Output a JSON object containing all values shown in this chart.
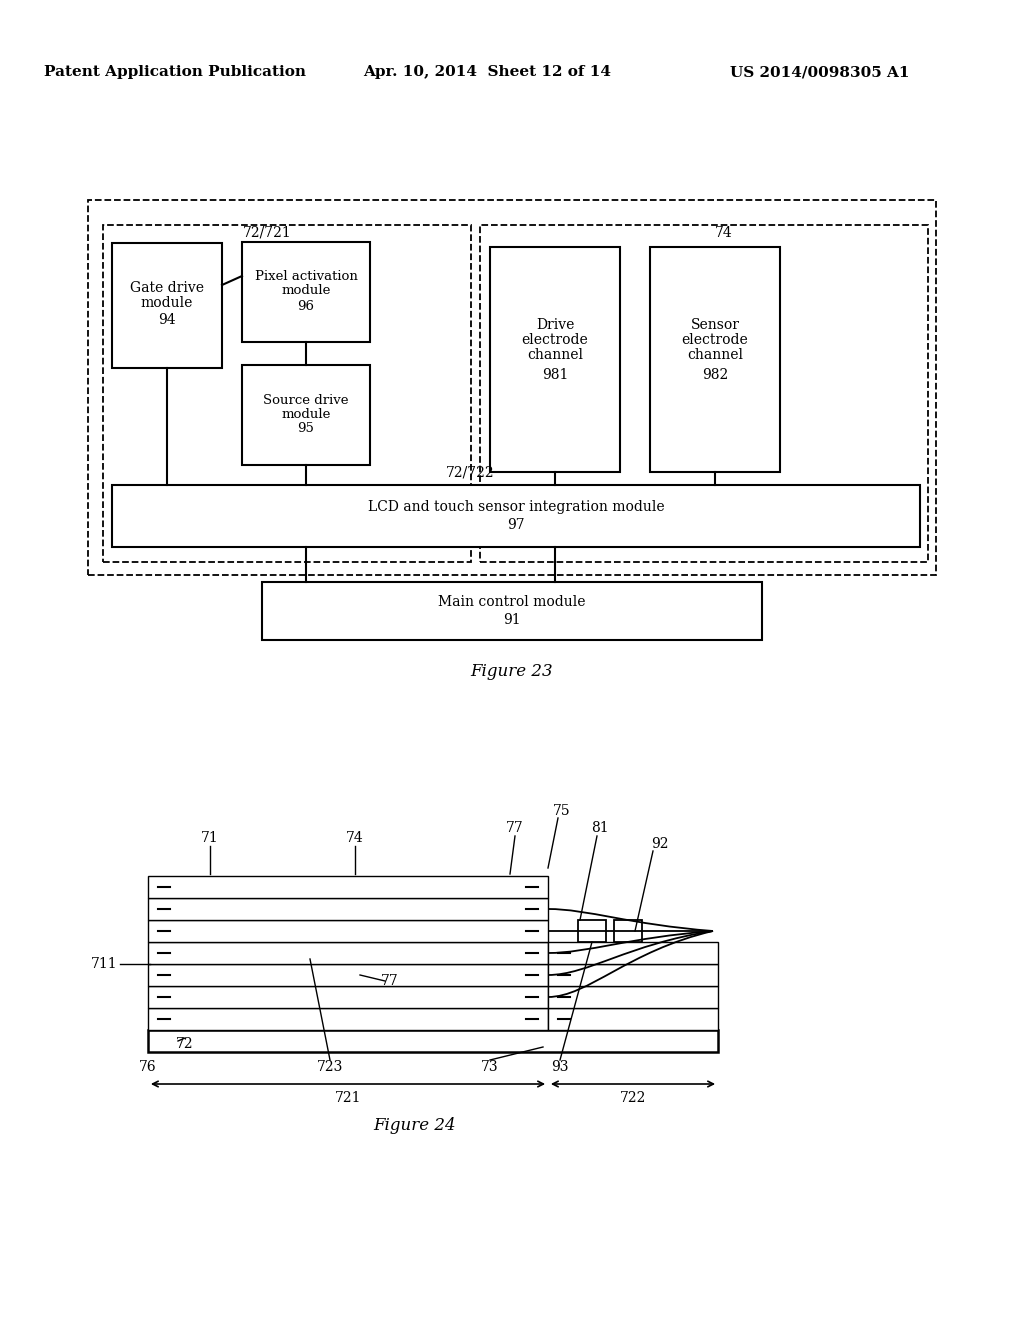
{
  "header_left": "Patent Application Publication",
  "header_center": "Apr. 10, 2014  Sheet 12 of 14",
  "header_right": "US 2014/0098305 A1",
  "fig23_title": "Figure 23",
  "fig24_title": "Figure 24",
  "background": "#ffffff"
}
